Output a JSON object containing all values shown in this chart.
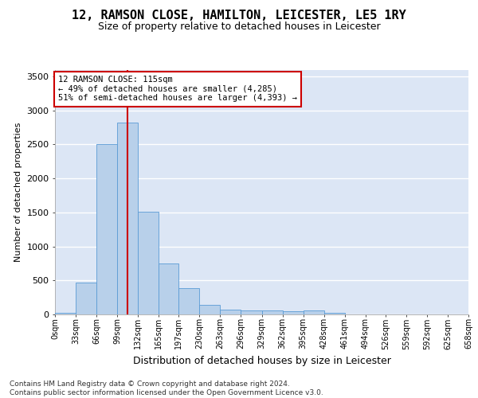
{
  "title": "12, RAMSON CLOSE, HAMILTON, LEICESTER, LE5 1RY",
  "subtitle": "Size of property relative to detached houses in Leicester",
  "xlabel": "Distribution of detached houses by size in Leicester",
  "ylabel": "Number of detached properties",
  "bar_color": "#b8d0ea",
  "bar_edge_color": "#5b9bd5",
  "background_color": "#dce6f5",
  "grid_color": "#ffffff",
  "bin_edges": [
    0,
    33,
    66,
    99,
    132,
    165,
    197,
    230,
    263,
    296,
    329,
    362,
    395,
    428,
    461,
    494,
    526,
    559,
    592,
    625,
    658
  ],
  "bar_heights": [
    20,
    470,
    2510,
    2820,
    1510,
    750,
    390,
    140,
    70,
    55,
    55,
    50,
    55,
    25,
    0,
    0,
    0,
    0,
    0,
    0
  ],
  "property_size": 115,
  "vline_color": "#cc0000",
  "annotation_text": "12 RAMSON CLOSE: 115sqm\n← 49% of detached houses are smaller (4,285)\n51% of semi-detached houses are larger (4,393) →",
  "annotation_box_color": "#ffffff",
  "annotation_border_color": "#cc0000",
  "ylim": [
    0,
    3600
  ],
  "footer_text": "Contains HM Land Registry data © Crown copyright and database right 2024.\nContains public sector information licensed under the Open Government Licence v3.0.",
  "tick_labels": [
    "0sqm",
    "33sqm",
    "66sqm",
    "99sqm",
    "132sqm",
    "165sqm",
    "197sqm",
    "230sqm",
    "263sqm",
    "296sqm",
    "329sqm",
    "362sqm",
    "395sqm",
    "428sqm",
    "461sqm",
    "494sqm",
    "526sqm",
    "559sqm",
    "592sqm",
    "625sqm",
    "658sqm"
  ]
}
